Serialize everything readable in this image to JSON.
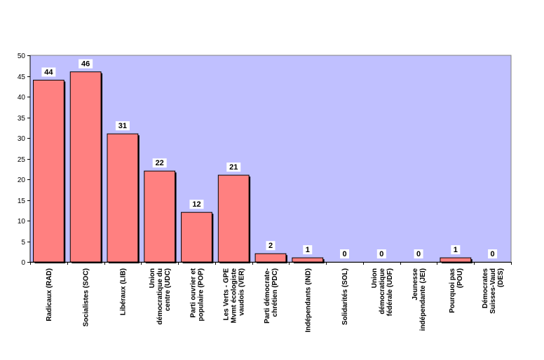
{
  "chart_data": {
    "type": "bar",
    "title": "",
    "xlabel": "",
    "ylabel": "",
    "ylim": [
      0,
      50
    ],
    "yticks": [
      0,
      5,
      10,
      15,
      20,
      25,
      30,
      35,
      40,
      45,
      50
    ],
    "grid": false,
    "legend": "none",
    "categories": [
      [
        "Radicaux (RAD)"
      ],
      [
        "Socialistes (SOC)"
      ],
      [
        "Libéraux (LIB)"
      ],
      [
        "Union",
        "démocratique du",
        "centre (UDC)"
      ],
      [
        "Parti ouvrier et",
        "populaire (POP)"
      ],
      [
        "Les Verts - GPE",
        "Mvmt écologiste",
        "vaudois (VER)"
      ],
      [
        "Parti démocrate-",
        "chrétien (PDC)"
      ],
      [
        "Indépendants (IND)"
      ],
      [
        "Solidarités (SOL)"
      ],
      [
        "Union",
        "démocratique",
        "fédérale (UDF)"
      ],
      [
        "Jeunesse",
        "indépendante (JEI)"
      ],
      [
        "Pourquoi pas",
        "(POU)"
      ],
      [
        "Démocrates",
        "Suisses-Vaud",
        "(DES)"
      ]
    ],
    "values": [
      44,
      46,
      31,
      22,
      12,
      21,
      2,
      1,
      0,
      0,
      0,
      1,
      0
    ],
    "data_labels": [
      "44",
      "46",
      "31",
      "22",
      "12",
      "21",
      "2",
      "1",
      "0",
      "0",
      "0",
      "1",
      "0"
    ],
    "colors": {
      "plot_background": "#c0c0ff",
      "bar_fill": "#ff8080",
      "bar_stroke": "#000000"
    }
  }
}
